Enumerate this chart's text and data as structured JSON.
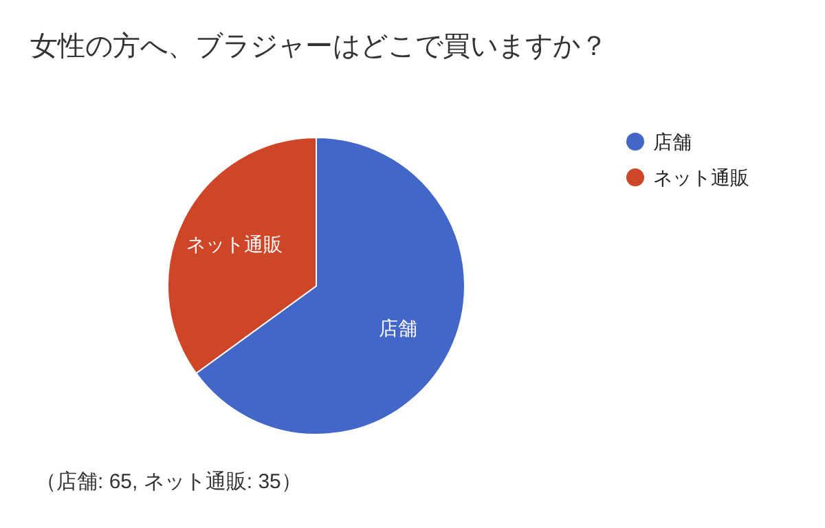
{
  "chart_data": {
    "type": "pie",
    "title": "女性の方へ、ブラジャーはどこで買いますか？",
    "categories": [
      "店舗",
      "ネット通販"
    ],
    "values": [
      65,
      35
    ],
    "colors": [
      "#4267c8",
      "#cf4527"
    ],
    "legend": "top right",
    "annotations": [
      "（店舗: 65, ネット通販: 35）"
    ]
  }
}
